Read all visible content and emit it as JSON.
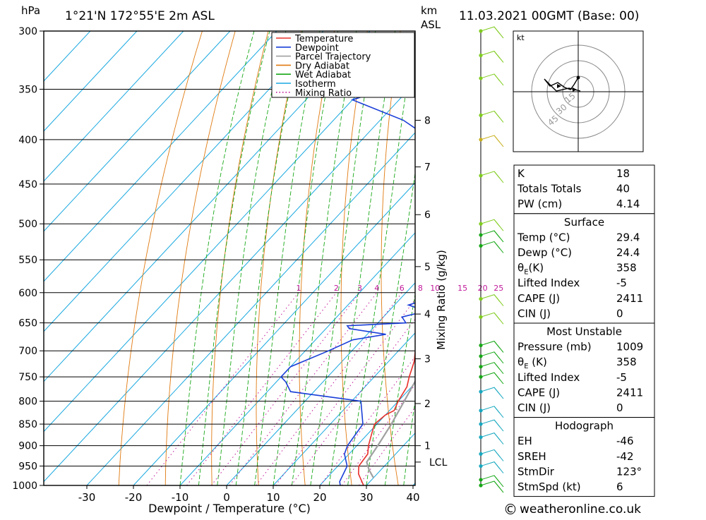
{
  "header": {
    "pressure_unit": "hPa",
    "location": "1°21'N  172°55'E  2m  ASL",
    "km_unit": "km",
    "asl_label": "ASL",
    "datetime": "11.03.2021  00GMT  (Base: 00)"
  },
  "colors": {
    "temperature": "#e8302a",
    "dewpoint": "#1a3fd8",
    "parcel": "#a0a0a0",
    "dry_adiabat": "#e07a10",
    "wet_adiabat": "#18a818",
    "isotherm": "#18a8e0",
    "mixing_ratio": "#c0189a"
  },
  "legend": [
    {
      "label": "Temperature",
      "color": "#e8302a",
      "style": "solid"
    },
    {
      "label": "Dewpoint",
      "color": "#1a3fd8",
      "style": "solid"
    },
    {
      "label": "Parcel Trajectory",
      "color": "#a0a0a0",
      "style": "solid"
    },
    {
      "label": "Dry Adiabat",
      "color": "#e07a10",
      "style": "solid"
    },
    {
      "label": "Wet Adiabat",
      "color": "#18a818",
      "style": "solid"
    },
    {
      "label": "Isotherm",
      "color": "#18a8e0",
      "style": "solid"
    },
    {
      "label": "Mixing Ratio",
      "color": "#c0189a",
      "style": "dotted"
    }
  ],
  "chart_data": {
    "type": "line",
    "chart_kind": "skew-T log-P",
    "xlabel": "Dewpoint / Temperature (°C)",
    "ylabel_left": "hPa",
    "ylabel_right": "Mixing Ratio (g/kg)",
    "pressure_levels": [
      300,
      350,
      400,
      450,
      500,
      550,
      600,
      650,
      700,
      750,
      800,
      850,
      900,
      950,
      1000
    ],
    "temperature_ticks": [
      -30,
      -20,
      -10,
      0,
      10,
      20,
      30,
      40
    ],
    "height_ticks_km": [
      "8",
      "7",
      "6",
      "5",
      "4",
      "3",
      "2",
      "1"
    ],
    "height_ticks_pressure": [
      380,
      430,
      488,
      560,
      635,
      715,
      805,
      900
    ],
    "lcl_label": "LCL",
    "lcl_pressure": 940,
    "mixing_ratio_labels": [
      "1",
      "2",
      "3",
      "4",
      "6",
      "8",
      "10",
      "15",
      "20",
      "25"
    ],
    "mixing_ratio_label_pressure": 600,
    "grid": true,
    "legend_position": "top-right",
    "series": [
      {
        "name": "Temperature",
        "points": [
          [
            1000,
            29.4
          ],
          [
            970,
            26.0
          ],
          [
            950,
            24.5
          ],
          [
            920,
            24.0
          ],
          [
            900,
            22.5
          ],
          [
            875,
            21.0
          ],
          [
            850,
            19.5
          ],
          [
            830,
            20.0
          ],
          [
            820,
            21.0
          ],
          [
            800,
            20.0
          ],
          [
            770,
            19.0
          ],
          [
            750,
            17.5
          ],
          [
            720,
            15.5
          ],
          [
            700,
            13.6
          ],
          [
            670,
            12.0
          ],
          [
            650,
            11.0
          ],
          [
            630,
            9.0
          ],
          [
            600,
            7.0
          ],
          [
            570,
            5.5
          ],
          [
            550,
            4.0
          ],
          [
            530,
            2.5
          ],
          [
            520,
            2.0
          ],
          [
            500,
            1.5
          ],
          [
            480,
            0.0
          ],
          [
            450,
            -2.8
          ],
          [
            430,
            -4.6
          ],
          [
            400,
            -7.2
          ],
          [
            380,
            -9.3
          ],
          [
            360,
            -11.6
          ],
          [
            330,
            -15.0
          ],
          [
            310,
            -18.0
          ],
          [
            300,
            -19.8
          ]
        ]
      },
      {
        "name": "Dewpoint",
        "points": [
          [
            1000,
            24.4
          ],
          [
            990,
            23.5
          ],
          [
            950,
            22.0
          ],
          [
            920,
            19.0
          ],
          [
            900,
            18.0
          ],
          [
            850,
            17.0
          ],
          [
            800,
            12.0
          ],
          [
            780,
            -5.0
          ],
          [
            760,
            -8.0
          ],
          [
            750,
            -10.0
          ],
          [
            730,
            -10.0
          ],
          [
            700,
            -5.0
          ],
          [
            680,
            -2.0
          ],
          [
            670,
            4.0
          ],
          [
            660,
            -5.0
          ],
          [
            655,
            -6.0
          ],
          [
            650,
            6.0
          ],
          [
            640,
            4.0
          ],
          [
            630,
            8.0
          ],
          [
            620,
            3.0
          ],
          [
            610,
            6.0
          ],
          [
            590,
            6.0
          ],
          [
            575,
            2.0
          ],
          [
            565,
            1.0
          ],
          [
            560,
            5.0
          ],
          [
            555,
            -4.0
          ],
          [
            550,
            4.0
          ],
          [
            540,
            3.0
          ],
          [
            530,
            7.0
          ],
          [
            525,
            1.0
          ],
          [
            520,
            5.0
          ],
          [
            515,
            -3.0
          ],
          [
            510,
            3.0
          ],
          [
            500,
            4.0
          ],
          [
            490,
            4.0
          ],
          [
            470,
            -2.0
          ],
          [
            450,
            -10.0
          ],
          [
            420,
            -18.0
          ],
          [
            400,
            -25.0
          ],
          [
            380,
            -35.0
          ],
          [
            360,
            -50.0
          ],
          [
            350,
            -45.0
          ],
          [
            340,
            -35.0
          ],
          [
            330,
            -32.0
          ],
          [
            310,
            -35.0
          ],
          [
            300,
            -38.0
          ]
        ]
      },
      {
        "name": "Parcel Trajectory",
        "points": [
          [
            980,
            30.0
          ],
          [
            960,
            27.5
          ],
          [
            940,
            25.4
          ],
          [
            900,
            24.5
          ],
          [
            850,
            23.1
          ],
          [
            800,
            21.3
          ],
          [
            750,
            19.3
          ],
          [
            700,
            17.0
          ],
          [
            650,
            14.3
          ],
          [
            600,
            11.1
          ],
          [
            550,
            7.3
          ],
          [
            500,
            2.6
          ],
          [
            450,
            -2.9
          ],
          [
            400,
            -9.4
          ],
          [
            350,
            -17.0
          ],
          [
            300,
            -25.5
          ]
        ]
      }
    ],
    "wind_barbs": [
      {
        "pressure": 1000,
        "color": "#18a818"
      },
      {
        "pressure": 985,
        "color": "#18a818"
      },
      {
        "pressure": 950,
        "color": "#18a8c0"
      },
      {
        "pressure": 920,
        "color": "#18a8c0"
      },
      {
        "pressure": 880,
        "color": "#18a8c0"
      },
      {
        "pressure": 850,
        "color": "#18a8c0"
      },
      {
        "pressure": 820,
        "color": "#18a8c0"
      },
      {
        "pressure": 780,
        "color": "#18a8c0"
      },
      {
        "pressure": 750,
        "color": "#18a818"
      },
      {
        "pressure": 730,
        "color": "#18a818"
      },
      {
        "pressure": 710,
        "color": "#18a818"
      },
      {
        "pressure": 690,
        "color": "#18a818"
      },
      {
        "pressure": 640,
        "color": "#80cc20"
      },
      {
        "pressure": 610,
        "color": "#80cc20"
      },
      {
        "pressure": 530,
        "color": "#18a818"
      },
      {
        "pressure": 515,
        "color": "#18a818"
      },
      {
        "pressure": 500,
        "color": "#80cc20"
      },
      {
        "pressure": 440,
        "color": "#80cc20"
      },
      {
        "pressure": 400,
        "color": "#c8b020"
      },
      {
        "pressure": 375,
        "color": "#80cc20"
      },
      {
        "pressure": 340,
        "color": "#80cc20"
      },
      {
        "pressure": 320,
        "color": "#80cc20"
      },
      {
        "pressure": 300,
        "color": "#80cc20"
      }
    ]
  },
  "hodograph": {
    "unit": "kt",
    "ring_labels": [
      "15",
      "30",
      "45"
    ]
  },
  "indices": {
    "main": [
      {
        "label": "K",
        "value": "18"
      },
      {
        "label": "Totals Totals",
        "value": "40"
      },
      {
        "label": "PW (cm)",
        "value": "4.14"
      }
    ],
    "surface": {
      "title": "Surface",
      "rows": [
        {
          "label": "Temp (°C)",
          "value": "29.4"
        },
        {
          "label": "Dewp (°C)",
          "value": "24.4"
        },
        {
          "label": "θ",
          "sub": "E",
          "tail": "(K)",
          "value": "358"
        },
        {
          "label": "Lifted Index",
          "value": "-5"
        },
        {
          "label": "CAPE (J)",
          "value": "2411"
        },
        {
          "label": "CIN (J)",
          "value": "0"
        }
      ]
    },
    "most_unstable": {
      "title": "Most Unstable",
      "rows": [
        {
          "label": "Pressure (mb)",
          "value": "1009"
        },
        {
          "label": "θ",
          "sub": "E",
          "tail": " (K)",
          "value": "358"
        },
        {
          "label": "Lifted Index",
          "value": "-5"
        },
        {
          "label": "CAPE (J)",
          "value": "2411"
        },
        {
          "label": "CIN (J)",
          "value": "0"
        }
      ]
    },
    "hodograph_stats": {
      "title": "Hodograph",
      "rows": [
        {
          "label": "EH",
          "value": "-46"
        },
        {
          "label": "SREH",
          "value": "-42"
        },
        {
          "label": "StmDir",
          "value": "123°"
        },
        {
          "label": "StmSpd (kt)",
          "value": "6"
        }
      ]
    }
  },
  "footer": {
    "copyright_symbol": "©",
    "site": "weatheronline.co.uk"
  }
}
